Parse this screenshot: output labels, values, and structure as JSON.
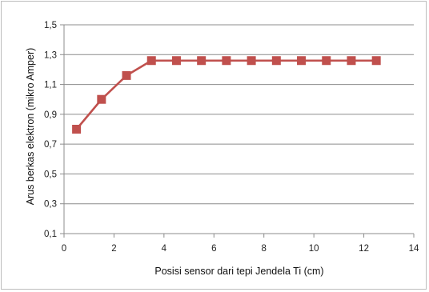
{
  "chart_data": {
    "type": "line",
    "xlabel": "Posisi sensor dari tepi Jendela Ti (cm)",
    "ylabel": "Arus berkas elektron (mikro Amper)",
    "xlim": [
      0,
      14
    ],
    "ylim": [
      0.1,
      1.5
    ],
    "x_ticks": [
      "0",
      "2",
      "4",
      "6",
      "8",
      "10",
      "12",
      "14"
    ],
    "y_ticks": [
      "0,1",
      "0,3",
      "0,5",
      "0,7",
      "0,9",
      "1,1",
      "1,3",
      "1,5"
    ],
    "grid": "horizontal",
    "series": [
      {
        "color": "#c0504d",
        "marker_color": "#c0504d",
        "x": [
          0.5,
          1.5,
          2.5,
          3.5,
          4.5,
          5.5,
          6.5,
          7.5,
          8.5,
          9.5,
          10.5,
          11.5,
          12.5
        ],
        "y": [
          0.8,
          1.0,
          1.16,
          1.26,
          1.26,
          1.26,
          1.26,
          1.26,
          1.26,
          1.26,
          1.26,
          1.26,
          1.26
        ]
      }
    ]
  }
}
